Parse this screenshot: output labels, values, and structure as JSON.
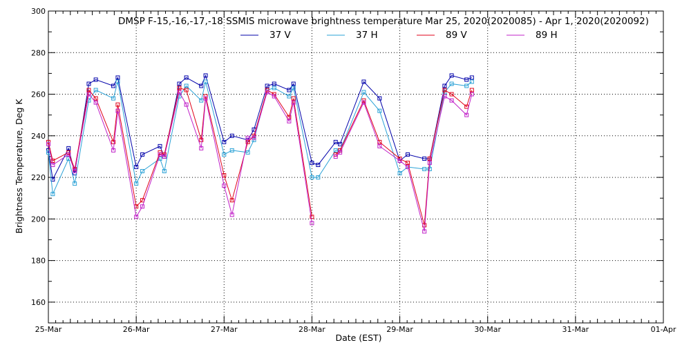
{
  "chart_data": {
    "type": "line",
    "title": "DMSP F-15,-16,-17,-18 SSMIS microwave brightness temperature Mar 25, 2020(2020085) - Apr  1, 2020(2020092)",
    "xlabel": "Date (EST)",
    "ylabel": "Brightness Temperature, Deg K",
    "xlim": [
      0,
      7
    ],
    "ylim": [
      150,
      300
    ],
    "x_tick_values": [
      0,
      1,
      2,
      3,
      4,
      5,
      6,
      7
    ],
    "x_tick_labels": [
      "25-Mar",
      "26-Mar",
      "27-Mar",
      "28-Mar",
      "29-Mar",
      "30-Mar",
      "31-Mar",
      "01-Apr"
    ],
    "y_tick_values": [
      160,
      180,
      200,
      220,
      240,
      260,
      280,
      300
    ],
    "y_tick_labels": [
      "160",
      "180",
      "200",
      "220",
      "240",
      "260",
      "280",
      "300"
    ],
    "grid": true,
    "legend_position": "top",
    "x": [
      0.0,
      0.05,
      0.23,
      0.3,
      0.46,
      0.54,
      0.74,
      0.79,
      1.0,
      1.07,
      1.27,
      1.32,
      1.49,
      1.57,
      1.74,
      1.79,
      2.0,
      2.09,
      2.27,
      2.34,
      2.49,
      2.57,
      2.74,
      2.79,
      3.0,
      3.07,
      3.27,
      3.32,
      3.59,
      3.77,
      4.0,
      4.09,
      4.28,
      4.34,
      4.51,
      4.59,
      4.76,
      4.82
    ],
    "series": [
      {
        "name": "37 V",
        "color": "#0000aa",
        "values": [
          233,
          219,
          234,
          222,
          265,
          267,
          264,
          268,
          225,
          231,
          235,
          230,
          265,
          268,
          264,
          269,
          237,
          240,
          238,
          243,
          264,
          265,
          262,
          265,
          227,
          226,
          237,
          236,
          266,
          258,
          228,
          231,
          229,
          229,
          264,
          269,
          267,
          268
        ]
      },
      {
        "name": "37 H",
        "color": "#2aa1d6",
        "values": [
          232,
          212,
          229,
          217,
          257,
          262,
          258,
          266,
          217,
          223,
          229,
          223,
          259,
          264,
          257,
          266,
          231,
          233,
          232,
          238,
          262,
          263,
          259,
          263,
          220,
          220,
          233,
          233,
          261,
          252,
          222,
          225,
          224,
          224,
          261,
          265,
          264,
          266
        ]
      },
      {
        "name": "89 V",
        "color": "#e00018",
        "values": [
          237,
          228,
          232,
          224,
          262,
          258,
          237,
          255,
          206,
          209,
          232,
          231,
          263,
          262,
          238,
          259,
          221,
          209,
          237,
          240,
          262,
          260,
          249,
          258,
          201,
          null,
          231,
          233,
          257,
          237,
          229,
          227,
          197,
          229,
          262,
          260,
          254,
          262
        ]
      },
      {
        "name": "89 H",
        "color": "#c020c8",
        "values": [
          236,
          226,
          231,
          223,
          260,
          256,
          233,
          252,
          201,
          206,
          231,
          230,
          261,
          255,
          234,
          258,
          216,
          202,
          239,
          239,
          261,
          259,
          247,
          256,
          198,
          null,
          230,
          232,
          256,
          235,
          228,
          225,
          194,
          227,
          259,
          257,
          250,
          260
        ]
      }
    ]
  }
}
